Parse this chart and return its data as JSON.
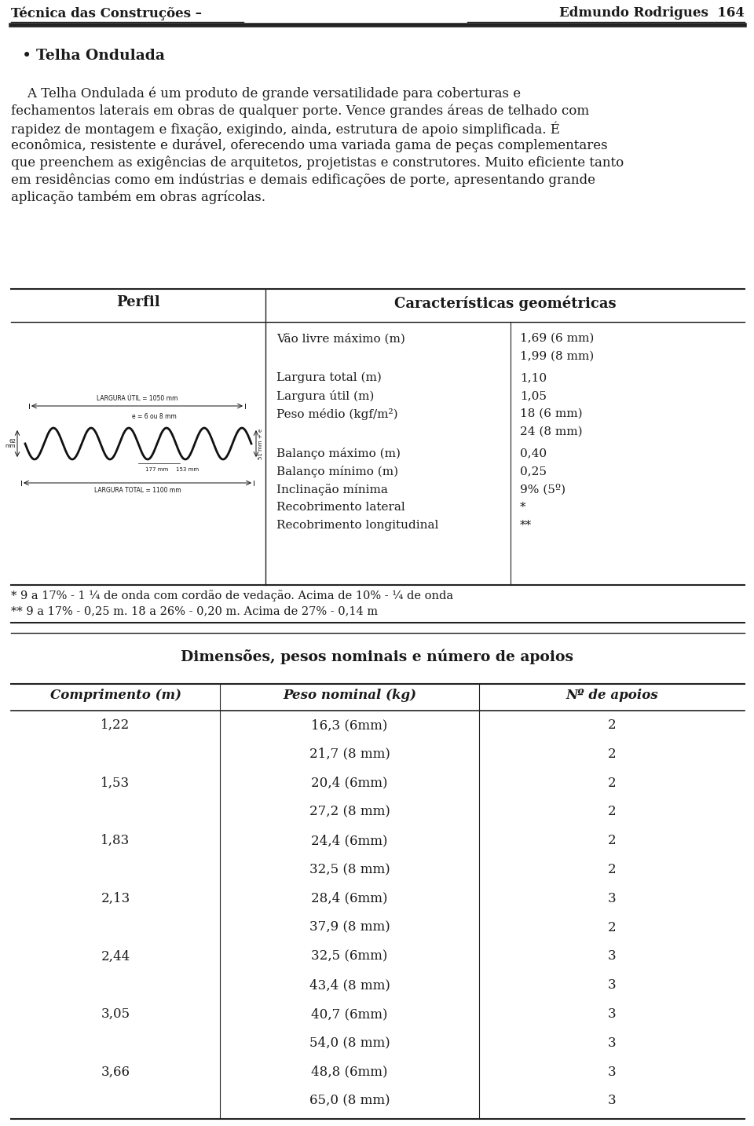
{
  "page_header_left": "Técnica das Construções –",
  "page_header_right": "Edmundo Rodrigues",
  "page_number": "164",
  "bullet_title": "Telha Ondulada",
  "para_lines": [
    "    A Telha Ondulada é um produto de grande versatilidade para coberturas e",
    "fechamentos laterais em obras de qualquer porte. Vence grandes áreas de telhado com",
    "rapidez de montagem e fixação, exigindo, ainda, estrutura de apoio simplificada. É",
    "econômica, resistente e durável, oferecendo uma variada gama de peças complementares",
    "que preenchem as exigências de arquitetos, projetistas e construtores. Muito eficiente tanto",
    "em residências como em indústrias e demais edificações de porte, apresentando grande",
    "aplicação também em obras agrícolas."
  ],
  "table1_col1_header": "Perfil",
  "table1_col2_header": "Características geométricas",
  "geom_props": [
    [
      "Vão livre máximo (m)",
      "1,69 (6 mm)\n1,99 (8 mm)"
    ],
    [
      "Largura total (m)",
      "1,10"
    ],
    [
      "Largura útil (m)",
      "1,05"
    ],
    [
      "Peso médio (kgf/m²)",
      "18 (6 mm)\n24 (8 mm)"
    ],
    [
      "Balanço máximo (m)",
      "0,40"
    ],
    [
      "Balanço mínimo (m)",
      "0,25"
    ],
    [
      "Inclinação mínima",
      "9% (5º)"
    ],
    [
      "Recobrimento lateral",
      "*"
    ],
    [
      "Recobrimento longitudinal",
      "**"
    ]
  ],
  "footnote1": "* 9 a 17% - 1 ¼ de onda com cordão de vedação. Acima de 10% - ¼ de onda",
  "footnote2": "** 9 a 17% - 0,25 m. 18 a 26% - 0,20 m. Acima de 27% - 0,14 m",
  "table2_title": "Dimensões, pesos nominais e número de apoios",
  "table2_headers": [
    "Comprimento (m)",
    "Peso nominal (kg)",
    "Nº de apoios"
  ],
  "table2_rows": [
    [
      "1,22",
      "16,3 (6mm)",
      "2"
    ],
    [
      "",
      "21,7 (8 mm)",
      "2"
    ],
    [
      "1,53",
      "20,4 (6mm)",
      "2"
    ],
    [
      "",
      "27,2 (8 mm)",
      "2"
    ],
    [
      "1,83",
      "24,4 (6mm)",
      "2"
    ],
    [
      "",
      "32,5 (8 mm)",
      "2"
    ],
    [
      "2,13",
      "28,4 (6mm)",
      "3"
    ],
    [
      "",
      "37,9 (8 mm)",
      "2"
    ],
    [
      "2,44",
      "32,5 (6mm)",
      "3"
    ],
    [
      "",
      "43,4 (8 mm)",
      "3"
    ],
    [
      "3,05",
      "40,7 (6mm)",
      "3"
    ],
    [
      "",
      "54,0 (8 mm)",
      "3"
    ],
    [
      "3,66",
      "48,8 (6mm)",
      "3"
    ],
    [
      "",
      "65,0 (8 mm)",
      "3"
    ]
  ],
  "bg_color": "#ffffff",
  "text_color": "#1a1a1a",
  "line_color": "#222222"
}
